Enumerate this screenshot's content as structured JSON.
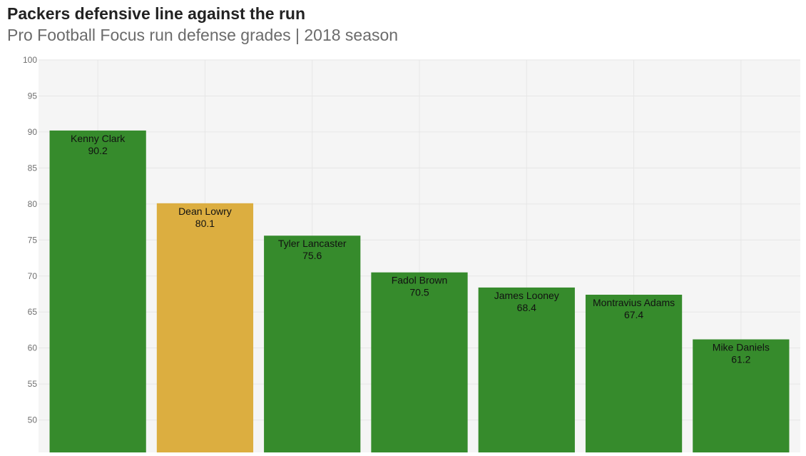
{
  "colors": {
    "default_bar": "#368b2c",
    "highlight_bar": "#dcae40",
    "plot_bg": "#f5f5f5",
    "grid": "#e6e6e6",
    "tick_text": "#6f6f6f",
    "bar_label": "#111111"
  },
  "chart_data": {
    "type": "bar",
    "title": "Packers defensive line against the run",
    "subtitle": "Pro Football Focus run defense grades | 2018 season",
    "xlabel": "",
    "ylabel": "",
    "ylim": [
      45.5,
      100
    ],
    "yticks": [
      50,
      55,
      60,
      65,
      70,
      75,
      80,
      85,
      90,
      95,
      100
    ],
    "grid": true,
    "categories": [
      "Kenny Clark",
      "Dean Lowry",
      "Tyler Lancaster",
      "Fadol Brown",
      "James Looney",
      "Montravius Adams",
      "Mike Daniels"
    ],
    "values": [
      90.2,
      80.1,
      75.6,
      70.5,
      68.4,
      67.4,
      61.2
    ],
    "value_labels": [
      "90.2",
      "80.1",
      "75.6",
      "70.5",
      "68.4",
      "67.4",
      "61.2"
    ],
    "highlighted": [
      "Dean Lowry"
    ]
  }
}
